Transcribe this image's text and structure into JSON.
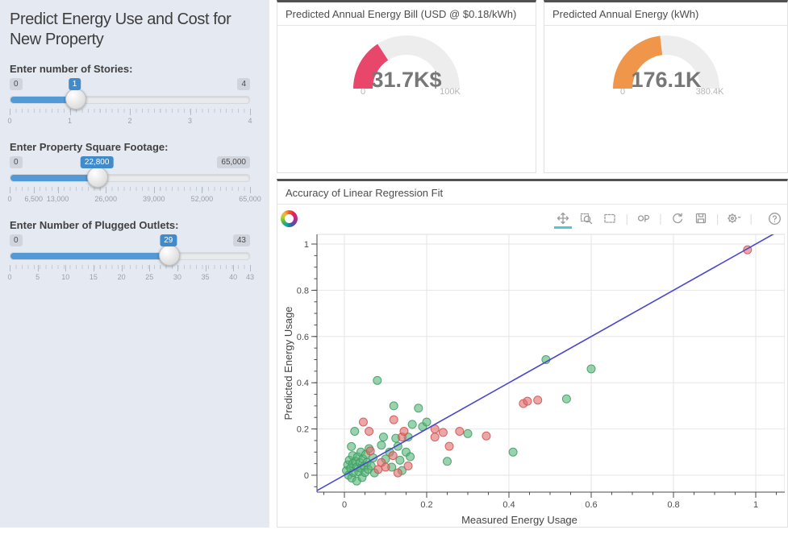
{
  "sidebar": {
    "title": "Predict Energy Use and Cost for New Property",
    "sliders": [
      {
        "label": "Enter number of Stories:",
        "min": "0",
        "max": "4",
        "value": "1",
        "fraction": 0.25,
        "ticks": [
          {
            "t": "0",
            "f": 0
          },
          {
            "t": "1",
            "f": 0.25
          },
          {
            "t": "2",
            "f": 0.5
          },
          {
            "t": "3",
            "f": 0.75
          },
          {
            "t": "4",
            "f": 1
          }
        ]
      },
      {
        "label": "Enter Property Square Footage:",
        "min": "0",
        "max": "65,000",
        "value": "22,800",
        "fraction": 0.3508,
        "ticks": [
          {
            "t": "0",
            "f": 0
          },
          {
            "t": "6,500",
            "f": 0.1
          },
          {
            "t": "13,000",
            "f": 0.2
          },
          {
            "t": "26,000",
            "f": 0.4
          },
          {
            "t": "39,000",
            "f": 0.6
          },
          {
            "t": "52,000",
            "f": 0.8
          },
          {
            "t": "65,000",
            "f": 1
          }
        ]
      },
      {
        "label": "Enter Number of Plugged Outlets:",
        "min": "0",
        "max": "43",
        "value": "29",
        "fraction": 0.6744,
        "ticks": [
          {
            "t": "0",
            "f": 0
          },
          {
            "t": "5",
            "f": 0.1163
          },
          {
            "t": "10",
            "f": 0.2326
          },
          {
            "t": "15",
            "f": 0.3488
          },
          {
            "t": "20",
            "f": 0.4651
          },
          {
            "t": "25",
            "f": 0.5814
          },
          {
            "t": "30",
            "f": 0.6977
          },
          {
            "t": "35",
            "f": 0.814
          },
          {
            "t": "40",
            "f": 0.9302
          },
          {
            "t": "43",
            "f": 1
          }
        ]
      }
    ]
  },
  "gauges": [
    {
      "title": "Predicted Annual Energy Bill (USD @ $0.18/kWh)",
      "value": "31.7K$",
      "min": "0",
      "max": "100K",
      "fraction": 0.317,
      "color": "#e8476b",
      "track_color": "#ededed"
    },
    {
      "title": "Predicted Annual Energy (kWh)",
      "value": "176.1K",
      "min": "0",
      "max": "380.4K",
      "fraction": 0.463,
      "color": "#f0964a",
      "track_color": "#ededed"
    }
  ],
  "chart_panel": {
    "title": "Accuracy of Linear Regression Fit",
    "toolbar": [
      "pan",
      "box-zoom",
      "box-select",
      "lasso-select",
      "reset",
      "save",
      "gear-dropdown",
      "help"
    ]
  },
  "chart_data": {
    "type": "scatter",
    "title": "Accuracy of Linear Regression Fit",
    "xlabel": "Measured Energy Usage",
    "ylabel": "Predicted Energy Usage",
    "xlim": [
      -0.067,
      1.076
    ],
    "ylim": [
      -0.073,
      1.042
    ],
    "xticks": [
      0,
      0.2,
      0.4,
      0.6,
      0.8,
      1
    ],
    "xtick_labels": [
      "0",
      "0.2",
      "0.4",
      "0.6",
      "0.8",
      "1"
    ],
    "yticks": [
      0,
      0.2,
      0.4,
      0.6,
      0.8,
      1
    ],
    "ytick_labels": [
      "0",
      "0.2",
      "0.4",
      "0.6",
      "0.8",
      "1"
    ],
    "grid": true,
    "line": {
      "name": "identity-fit-line",
      "color": "#4a46cf",
      "points": [
        [
          -0.09,
          -0.09
        ],
        [
          1.09,
          1.09
        ]
      ]
    },
    "series": [
      {
        "name": "predicted-green",
        "color": "#57b478",
        "edge": "#3f9e63",
        "points": [
          [
            0.005,
            0.02
          ],
          [
            0.008,
            0.045
          ],
          [
            0.01,
            0.0
          ],
          [
            0.012,
            0.065
          ],
          [
            0.015,
            0.03
          ],
          [
            0.017,
            0.124
          ],
          [
            0.018,
            -0.012
          ],
          [
            0.02,
            0.05
          ],
          [
            0.02,
            0.085
          ],
          [
            0.022,
            0.012
          ],
          [
            0.025,
            0.19
          ],
          [
            0.027,
            0.06
          ],
          [
            0.03,
            0.035
          ],
          [
            0.03,
            -0.025
          ],
          [
            0.032,
            0.08
          ],
          [
            0.035,
            0.015
          ],
          [
            0.038,
            0.055
          ],
          [
            0.04,
            0.1
          ],
          [
            0.04,
            0.03
          ],
          [
            0.043,
            -0.01
          ],
          [
            0.045,
            0.07
          ],
          [
            0.048,
            0.04
          ],
          [
            0.05,
            0.012
          ],
          [
            0.052,
            0.09
          ],
          [
            0.055,
            0.055
          ],
          [
            0.058,
            0.025
          ],
          [
            0.06,
            0.115
          ],
          [
            0.065,
            0.04
          ],
          [
            0.07,
            0.075
          ],
          [
            0.073,
            0.01
          ],
          [
            0.08,
            0.41
          ],
          [
            0.09,
            0.13
          ],
          [
            0.095,
            0.165
          ],
          [
            0.1,
            0.07
          ],
          [
            0.11,
            0.1
          ],
          [
            0.115,
            0.035
          ],
          [
            0.12,
            0.3
          ],
          [
            0.125,
            0.16
          ],
          [
            0.13,
            0.125
          ],
          [
            0.135,
            0.065
          ],
          [
            0.14,
            0.02
          ],
          [
            0.15,
            0.1
          ],
          [
            0.155,
            0.165
          ],
          [
            0.16,
            0.08
          ],
          [
            0.165,
            0.22
          ],
          [
            0.18,
            0.29
          ],
          [
            0.19,
            0.21
          ],
          [
            0.2,
            0.23
          ],
          [
            0.25,
            0.06
          ],
          [
            0.3,
            0.18
          ],
          [
            0.41,
            0.1
          ],
          [
            0.49,
            0.5
          ],
          [
            0.54,
            0.33
          ],
          [
            0.6,
            0.46
          ]
        ]
      },
      {
        "name": "predicted-red",
        "color": "#e06a6a",
        "edge": "#cf5454",
        "points": [
          [
            0.046,
            0.23
          ],
          [
            0.06,
            0.19
          ],
          [
            0.063,
            0.105
          ],
          [
            0.082,
            0.025
          ],
          [
            0.09,
            0.055
          ],
          [
            0.1,
            0.035
          ],
          [
            0.118,
            0.085
          ],
          [
            0.12,
            0.24
          ],
          [
            0.13,
            0.01
          ],
          [
            0.14,
            0.165
          ],
          [
            0.145,
            0.19
          ],
          [
            0.155,
            0.04
          ],
          [
            0.22,
            0.2
          ],
          [
            0.22,
            0.165
          ],
          [
            0.24,
            0.185
          ],
          [
            0.255,
            0.125
          ],
          [
            0.28,
            0.19
          ],
          [
            0.345,
            0.17
          ],
          [
            0.435,
            0.31
          ],
          [
            0.445,
            0.32
          ],
          [
            0.47,
            0.325
          ],
          [
            0.98,
            0.975
          ]
        ]
      }
    ]
  },
  "colors": {
    "accent_blue": "#428bca",
    "slider_fill": "#529ad6",
    "sidebar_bg": "#e5eaf2",
    "gauge_pink": "#e8476b",
    "gauge_orange": "#f0964a",
    "fit_line_blue": "#4a46cf",
    "point_green": "#57b478",
    "point_red": "#e06a6a",
    "active_tool_underline": "#52c6d3"
  }
}
